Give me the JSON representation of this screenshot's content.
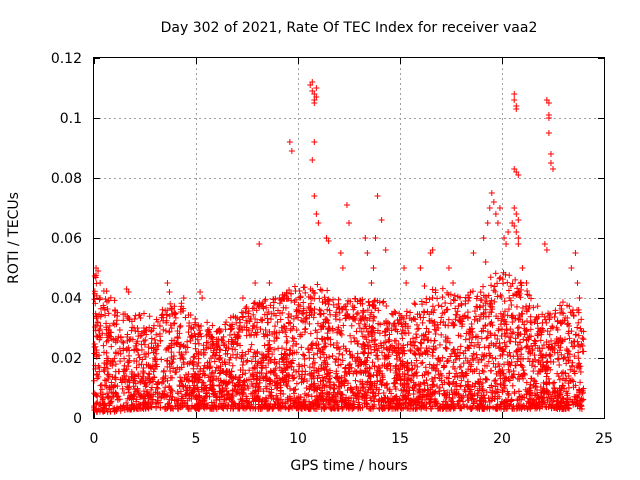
{
  "chart_data": {
    "type": "scatter",
    "title": "Day 302 of 2021, Rate Of TEC Index for receiver vaa2",
    "xlabel": "GPS time / hours",
    "ylabel": "ROTI / TECUs",
    "xlim": [
      0,
      25
    ],
    "ylim": [
      0,
      0.12
    ],
    "x_ticks": [
      0,
      5,
      10,
      15,
      20,
      25
    ],
    "y_ticks": [
      0,
      0.02,
      0.04,
      0.06,
      0.08,
      0.1,
      0.12
    ],
    "x_tick_labels": [
      "0",
      "5",
      "10",
      "15",
      "20",
      "25"
    ],
    "y_tick_labels": [
      "0",
      "0.02",
      "0.04",
      "0.06",
      "0.08",
      "0.1",
      "0.12"
    ],
    "grid": true,
    "legend": "none",
    "marker": "plus",
    "marker_color": "#ff0000",
    "x_range_of_data_hours": [
      0,
      24
    ],
    "background_band_hours_value_min_max": [
      [
        0.0,
        0.002,
        0.05
      ],
      [
        1.0,
        0.002,
        0.04
      ],
      [
        2.0,
        0.003,
        0.035
      ],
      [
        3.0,
        0.003,
        0.035
      ],
      [
        4.0,
        0.003,
        0.04
      ],
      [
        5.0,
        0.003,
        0.035
      ],
      [
        6.0,
        0.003,
        0.03
      ],
      [
        7.0,
        0.003,
        0.035
      ],
      [
        8.0,
        0.003,
        0.04
      ],
      [
        9.0,
        0.003,
        0.04
      ],
      [
        10.0,
        0.003,
        0.045
      ],
      [
        11.0,
        0.003,
        0.045
      ],
      [
        12.0,
        0.003,
        0.04
      ],
      [
        13.0,
        0.003,
        0.04
      ],
      [
        14.0,
        0.003,
        0.04
      ],
      [
        15.0,
        0.003,
        0.035
      ],
      [
        16.0,
        0.003,
        0.04
      ],
      [
        17.0,
        0.003,
        0.045
      ],
      [
        18.0,
        0.003,
        0.04
      ],
      [
        19.0,
        0.003,
        0.045
      ],
      [
        20.0,
        0.003,
        0.05
      ],
      [
        21.0,
        0.003,
        0.045
      ],
      [
        22.0,
        0.003,
        0.035
      ],
      [
        23.0,
        0.003,
        0.04
      ],
      [
        24.0,
        0.003,
        0.035
      ]
    ],
    "x": [
      0.1,
      0.2,
      0.3,
      0.3,
      1.6,
      1.7,
      3.6,
      3.7,
      4.4,
      5.2,
      5.3,
      7.3,
      7.9,
      8.1,
      8.6,
      9.1,
      9.6,
      9.7,
      10.6,
      10.7,
      10.7,
      10.8,
      10.8,
      10.8,
      10.9,
      10.9,
      10.7,
      10.8,
      10.8,
      10.9,
      11.0,
      11.4,
      11.5,
      12.1,
      12.2,
      12.4,
      12.5,
      13.3,
      13.4,
      13.6,
      13.7,
      13.8,
      13.9,
      14.1,
      14.3,
      15.2,
      15.3,
      16.0,
      16.2,
      16.5,
      16.6,
      17.4,
      17.6,
      18.6,
      19.1,
      19.2,
      19.3,
      19.4,
      19.5,
      19.6,
      19.7,
      19.8,
      19.9,
      20.1,
      20.2,
      20.3,
      20.5,
      20.6,
      20.6,
      20.7,
      20.7,
      20.6,
      20.7,
      20.8,
      20.6,
      20.7,
      20.8,
      20.6,
      20.7,
      20.8,
      20.8,
      21.0,
      21.2,
      22.1,
      22.2,
      22.2,
      22.3,
      22.3,
      22.3,
      22.3,
      22.4,
      22.4,
      22.5,
      23.4,
      23.6,
      23.7,
      23.8
    ],
    "y": [
      0.05,
      0.049,
      0.045,
      0.04,
      0.043,
      0.042,
      0.045,
      0.042,
      0.04,
      0.042,
      0.04,
      0.04,
      0.045,
      0.058,
      0.045,
      0.04,
      0.092,
      0.089,
      0.111,
      0.112,
      0.109,
      0.108,
      0.106,
      0.105,
      0.11,
      0.107,
      0.086,
      0.092,
      0.074,
      0.068,
      0.065,
      0.06,
      0.059,
      0.055,
      0.05,
      0.071,
      0.065,
      0.06,
      0.055,
      0.045,
      0.05,
      0.06,
      0.074,
      0.066,
      0.056,
      0.05,
      0.045,
      0.05,
      0.044,
      0.055,
      0.056,
      0.05,
      0.045,
      0.055,
      0.06,
      0.052,
      0.065,
      0.07,
      0.075,
      0.072,
      0.068,
      0.065,
      0.07,
      0.06,
      0.058,
      0.062,
      0.065,
      0.108,
      0.106,
      0.104,
      0.103,
      0.083,
      0.082,
      0.081,
      0.07,
      0.068,
      0.066,
      0.064,
      0.062,
      0.06,
      0.058,
      0.05,
      0.045,
      0.058,
      0.056,
      0.106,
      0.105,
      0.101,
      0.1,
      0.095,
      0.088,
      0.085,
      0.083,
      0.05,
      0.055,
      0.045,
      0.04
    ]
  }
}
